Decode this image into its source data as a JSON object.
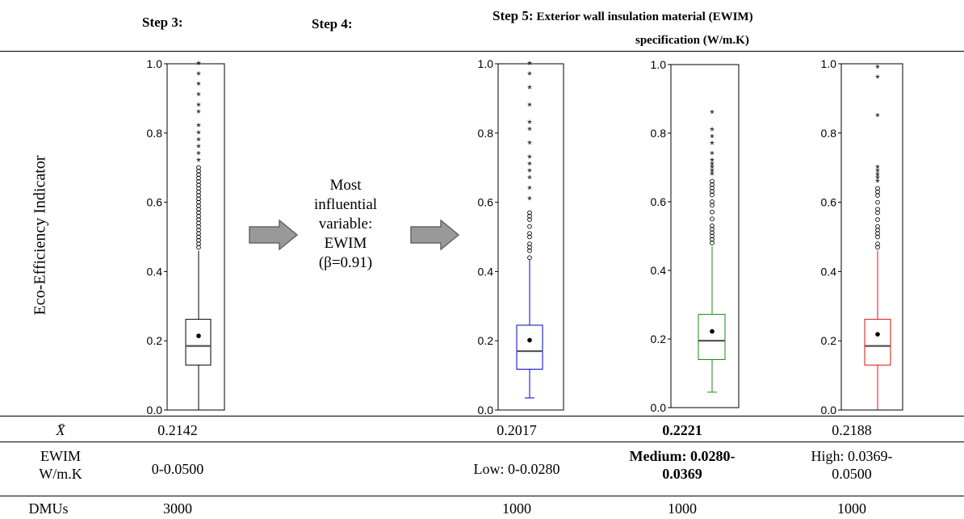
{
  "headers": {
    "step3": "Step 3:",
    "step4": "Step 4:",
    "step5_bold": "Step 5:",
    "step5_rest": "Exterior wall insulation material (EWIM)",
    "step5_line2": "specification (W/m.K)"
  },
  "y_axis_label": "Eco-Efficiency Indicator",
  "middle_text": {
    "line1": "Most",
    "line2": "influential",
    "line3": "variable:",
    "line4": "EWIM",
    "line5": "(β=0.91)"
  },
  "colors": {
    "step3": "#000000",
    "low": "#0000cc",
    "medium": "#1a8a1a",
    "high": "#dd1111",
    "median_line": "#555555",
    "arrow_fill": "#999999",
    "arrow_stroke": "#666666"
  },
  "table": {
    "mean_label": "X̄",
    "ewim_label_line1": "EWIM",
    "ewim_label_line2": "W/m.K",
    "dmus_label": "DMUs",
    "col3": {
      "mean": "0.2142",
      "ewim": "0-0.0500",
      "dmus": "3000"
    },
    "low": {
      "mean": "0.2017",
      "ewim": "Low: 0-0.0280",
      "dmus": "1000"
    },
    "medium": {
      "mean": "0.2221",
      "ewim_line1": "Medium: 0.0280-",
      "ewim_line2": "0.0369",
      "dmus": "1000"
    },
    "high": {
      "mean": "0.2188",
      "ewim_line1": "High: 0.0369-",
      "ewim_line2": "0.0500",
      "dmus": "1000"
    }
  },
  "chart_data": [
    {
      "type": "box",
      "name": "",
      "ylim": [
        0,
        1.0
      ],
      "y_ticks": [
        "0.0",
        "0.2",
        "0.4",
        "0.6",
        "0.8",
        "1.0"
      ],
      "whisker_low": 0.0,
      "q1": 0.13,
      "median": 0.185,
      "q3": 0.262,
      "whisker_high": 0.46,
      "mean": 0.2142,
      "outliers_circle": [
        0.47,
        0.48,
        0.49,
        0.5,
        0.51,
        0.52,
        0.53,
        0.54,
        0.55,
        0.56,
        0.57,
        0.58,
        0.59,
        0.6,
        0.61,
        0.62,
        0.63,
        0.64,
        0.65,
        0.66,
        0.67,
        0.68,
        0.69,
        0.7
      ],
      "outliers_star": [
        0.72,
        0.74,
        0.76,
        0.78,
        0.8,
        0.82,
        0.86,
        0.88,
        0.91,
        0.94,
        0.97,
        1.0
      ]
    },
    {
      "type": "box",
      "name": "Low",
      "ylim": [
        0,
        1.0
      ],
      "y_ticks": [
        "0.0",
        "0.2",
        "0.4",
        "0.6",
        "0.8",
        "1.0"
      ],
      "whisker_low": 0.035,
      "q1": 0.118,
      "median": 0.17,
      "q3": 0.245,
      "whisker_high": 0.435,
      "mean": 0.2017,
      "outliers_circle": [
        0.44,
        0.46,
        0.47,
        0.48,
        0.5,
        0.51,
        0.53,
        0.55,
        0.56,
        0.57
      ],
      "outliers_star": [
        0.61,
        0.64,
        0.67,
        0.69,
        0.71,
        0.73,
        0.77,
        0.81,
        0.83,
        0.88,
        0.93,
        0.97,
        1.0
      ]
    },
    {
      "type": "box",
      "name": "Medium",
      "ylim": [
        0,
        1.0
      ],
      "y_ticks": [
        "0.0",
        "0.2",
        "0.4",
        "0.6",
        "0.8",
        "1.0"
      ],
      "whisker_low": 0.045,
      "q1": 0.14,
      "median": 0.195,
      "q3": 0.272,
      "whisker_high": 0.47,
      "mean": 0.2221,
      "outliers_circle": [
        0.48,
        0.49,
        0.5,
        0.51,
        0.52,
        0.53,
        0.55,
        0.57,
        0.59,
        0.6,
        0.62,
        0.63,
        0.64,
        0.65,
        0.66
      ],
      "outliers_star": [
        0.68,
        0.69,
        0.7,
        0.71,
        0.72,
        0.74,
        0.77,
        0.79,
        0.81,
        0.86
      ]
    },
    {
      "type": "box",
      "name": "High",
      "ylim": [
        0,
        1.0
      ],
      "y_ticks": [
        "0.0",
        "0.2",
        "0.4",
        "0.6",
        "0.8",
        "1.0"
      ],
      "whisker_low": 0.0,
      "q1": 0.13,
      "median": 0.185,
      "q3": 0.262,
      "whisker_high": 0.46,
      "mean": 0.2188,
      "outliers_circle": [
        0.47,
        0.48,
        0.5,
        0.51,
        0.52,
        0.53,
        0.55,
        0.57,
        0.58,
        0.6,
        0.62,
        0.63,
        0.64
      ],
      "outliers_star": [
        0.66,
        0.67,
        0.68,
        0.69,
        0.7,
        0.85,
        0.96,
        0.99
      ]
    }
  ]
}
